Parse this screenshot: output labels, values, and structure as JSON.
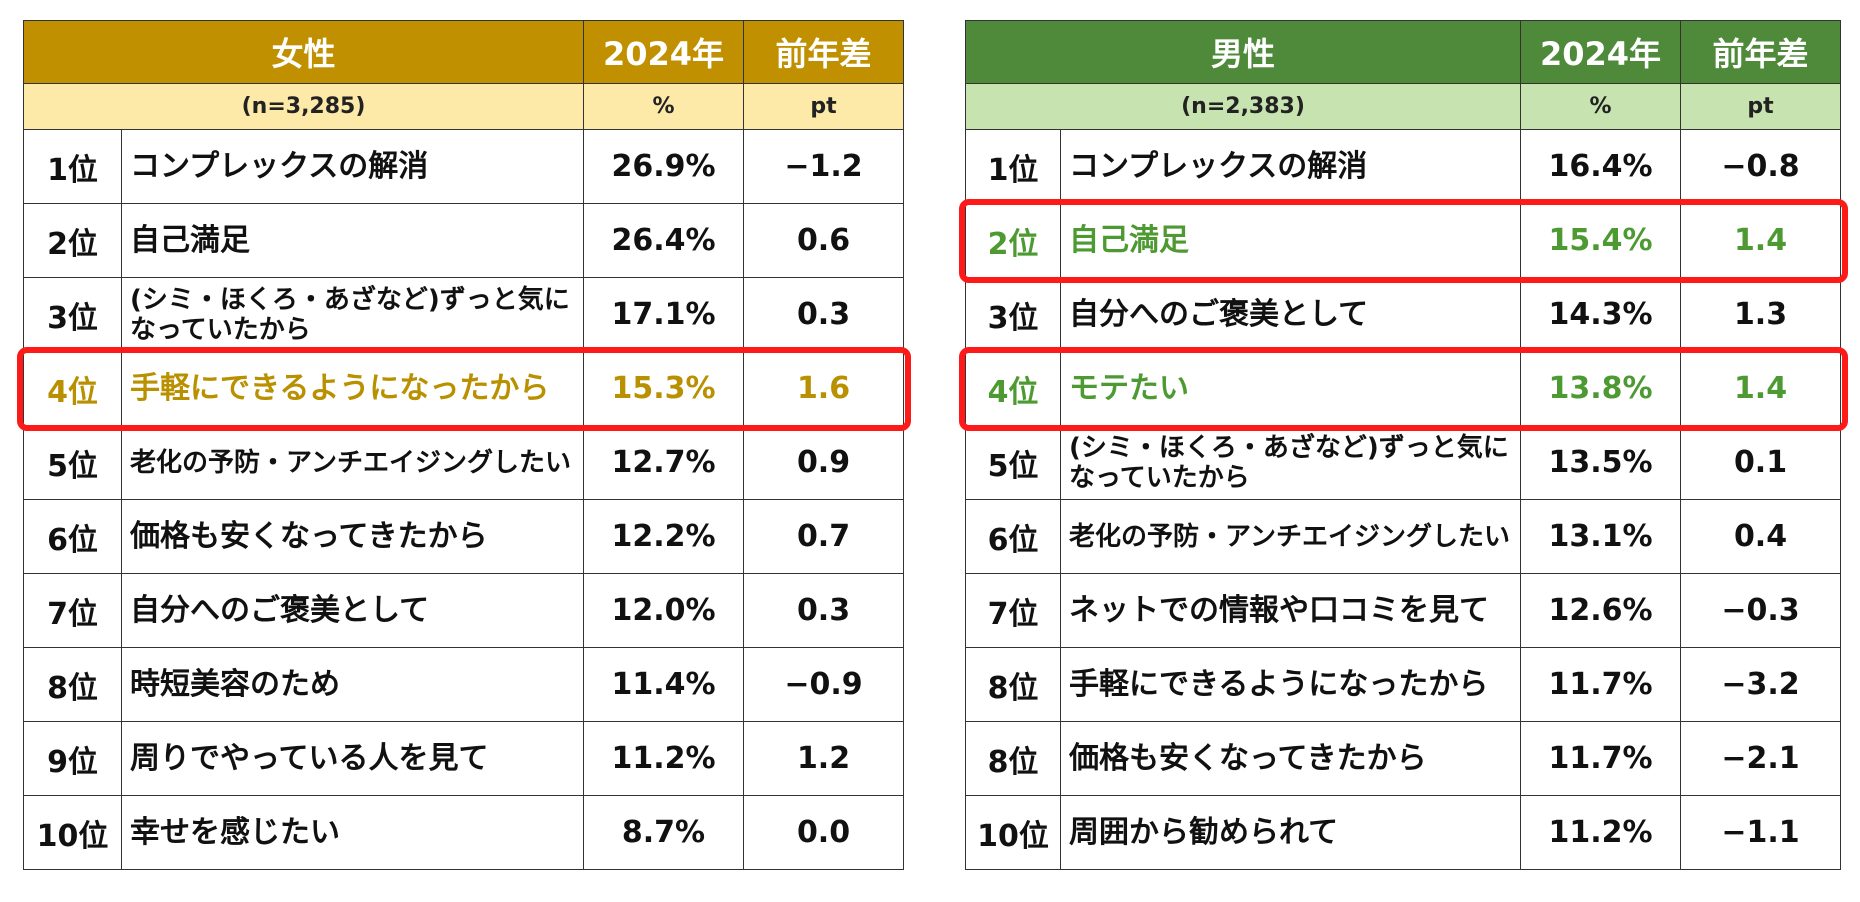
{
  "colors": {
    "women_header": "#c09000",
    "women_subheader": "#fde9a8",
    "women_highlight_text": "#b99000",
    "men_header": "#4e8a3a",
    "men_subheader": "#c7e3b0",
    "men_highlight_text": "#4e9a32",
    "highlight_border": "#ff1a1a"
  },
  "chart_data": [
    {
      "type": "table",
      "headers": [
        "女性",
        "2024年",
        "前年差"
      ],
      "subheaders": [
        "(n=3,285)",
        "%",
        "pt"
      ],
      "rows": [
        {
          "rank": "1位",
          "reason": "コンプレックスの解消",
          "value": "26.9%",
          "diff": "−1.2",
          "highlight": false
        },
        {
          "rank": "2位",
          "reason": "自己満足",
          "value": "26.4%",
          "diff": "0.6",
          "highlight": false
        },
        {
          "rank": "3位",
          "reason": "(シミ・ほくろ・あざなど)ずっと気になっていたから",
          "value": "17.1%",
          "diff": "0.3",
          "highlight": false
        },
        {
          "rank": "4位",
          "reason": "手軽にできるようになったから",
          "value": "15.3%",
          "diff": "1.6",
          "highlight": true
        },
        {
          "rank": "5位",
          "reason": "老化の予防・アンチエイジングしたい",
          "value": "12.7%",
          "diff": "0.9",
          "highlight": false
        },
        {
          "rank": "6位",
          "reason": "価格も安くなってきたから",
          "value": "12.2%",
          "diff": "0.7",
          "highlight": false
        },
        {
          "rank": "7位",
          "reason": "自分へのご褒美として",
          "value": "12.0%",
          "diff": "0.3",
          "highlight": false
        },
        {
          "rank": "8位",
          "reason": "時短美容のため",
          "value": "11.4%",
          "diff": "−0.9",
          "highlight": false
        },
        {
          "rank": "9位",
          "reason": "周りでやっている人を見て",
          "value": "11.2%",
          "diff": "1.2",
          "highlight": false
        },
        {
          "rank": "10位",
          "reason": "幸せを感じたい",
          "value": "8.7%",
          "diff": "0.0",
          "highlight": false
        }
      ]
    },
    {
      "type": "table",
      "headers": [
        "男性",
        "2024年",
        "前年差"
      ],
      "subheaders": [
        "(n=2,383)",
        "%",
        "pt"
      ],
      "rows": [
        {
          "rank": "1位",
          "reason": "コンプレックスの解消",
          "value": "16.4%",
          "diff": "−0.8",
          "highlight": false
        },
        {
          "rank": "2位",
          "reason": "自己満足",
          "value": "15.4%",
          "diff": "1.4",
          "highlight": true
        },
        {
          "rank": "3位",
          "reason": "自分へのご褒美として",
          "value": "14.3%",
          "diff": "1.3",
          "highlight": false
        },
        {
          "rank": "4位",
          "reason": "モテたい",
          "value": "13.8%",
          "diff": "1.4",
          "highlight": true
        },
        {
          "rank": "5位",
          "reason": "(シミ・ほくろ・あざなど)ずっと気になっていたから",
          "value": "13.5%",
          "diff": "0.1",
          "highlight": false
        },
        {
          "rank": "6位",
          "reason": "老化の予防・アンチエイジングしたい",
          "value": "13.1%",
          "diff": "0.4",
          "highlight": false
        },
        {
          "rank": "7位",
          "reason": "ネットでの情報や口コミを見て",
          "value": "12.6%",
          "diff": "−0.3",
          "highlight": false
        },
        {
          "rank": "8位",
          "reason": "手軽にできるようになったから",
          "value": "11.7%",
          "diff": "−3.2",
          "highlight": false
        },
        {
          "rank": "8位",
          "reason": "価格も安くなってきたから",
          "value": "11.7%",
          "diff": "−2.1",
          "highlight": false
        },
        {
          "rank": "10位",
          "reason": "周囲から勧められて",
          "value": "11.2%",
          "diff": "−1.1",
          "highlight": false
        }
      ]
    }
  ]
}
